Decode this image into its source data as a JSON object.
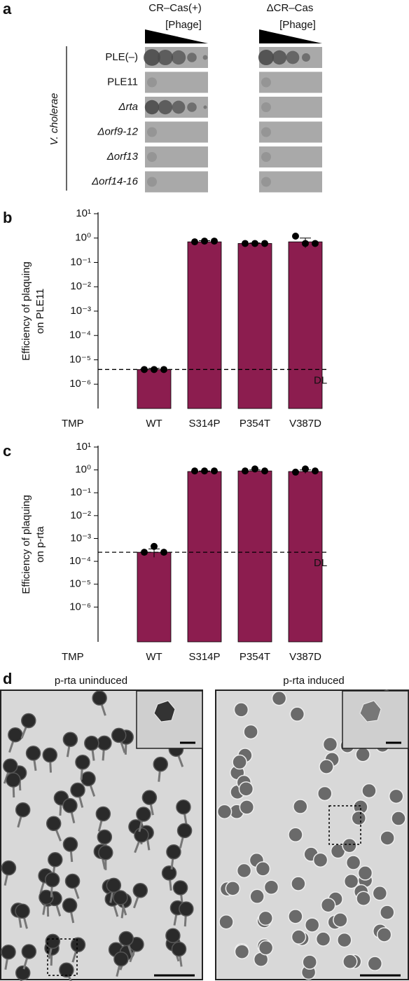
{
  "panel_a": {
    "label": "a",
    "columns": [
      {
        "title": "CR–Cas(+)",
        "subtitle": "[Phage]"
      },
      {
        "title": "ΔCR–Cas",
        "subtitle": "[Phage]"
      }
    ],
    "group_label": "V. cholerae",
    "rows": [
      "PLE(–)",
      "PLE11",
      "Δrta",
      "Δorf9-12",
      "Δorf13",
      "Δorf14-16"
    ]
  },
  "chart_data": [
    {
      "type": "bar",
      "panel_label": "b",
      "y_label": [
        "Efficiency of plaquing",
        "on PLE11"
      ],
      "x_label": "TMP",
      "categories": [
        "WT",
        "S314P",
        "P354T",
        "V387D"
      ],
      "values": [
        4e-06,
        0.7,
        0.6,
        0.7
      ],
      "errors": [
        5e-07,
        0.08,
        0.03,
        0.3
      ],
      "points": [
        [
          4e-06,
          4e-06,
          4e-06
        ],
        [
          0.7,
          0.75,
          0.75
        ],
        [
          0.6,
          0.6,
          0.6
        ],
        [
          1.2,
          0.6,
          0.6
        ]
      ],
      "color": "#8c1d4f",
      "log_scale": true,
      "ylim": [
        1e-07,
        10
      ],
      "yticks": [
        {
          "value": 10,
          "label": "10¹"
        },
        {
          "value": 1,
          "label": "10⁰"
        },
        {
          "value": 0.1,
          "label": "10⁻¹"
        },
        {
          "value": 0.01,
          "label": "10⁻²"
        },
        {
          "value": 0.001,
          "label": "10⁻³"
        },
        {
          "value": 0.0001,
          "label": "10⁻⁴"
        },
        {
          "value": 1e-05,
          "label": "10⁻⁵"
        },
        {
          "value": 1e-06,
          "label": "10⁻⁶"
        }
      ],
      "detection_limit": 4e-06,
      "detection_limit_label": "DL"
    },
    {
      "type": "bar",
      "panel_label": "c",
      "y_label": [
        "Efficiency of plaquing",
        "on p-rta"
      ],
      "x_label": "TMP",
      "categories": [
        "WT",
        "S314P",
        "P354T",
        "V387D"
      ],
      "values": [
        0.00025,
        0.85,
        0.9,
        0.85
      ],
      "errors": [
        0.0001,
        0.05,
        0.1,
        0.15
      ],
      "points": [
        [
          0.00025,
          0.00045,
          0.00025
        ],
        [
          0.9,
          0.9,
          0.9
        ],
        [
          0.9,
          1.1,
          0.9
        ],
        [
          0.8,
          1.1,
          0.9
        ]
      ],
      "color": "#8c1d4f",
      "log_scale": true,
      "ylim": [
        3e-08,
        10
      ],
      "yticks": [
        {
          "value": 10,
          "label": "10¹"
        },
        {
          "value": 1,
          "label": "10⁰"
        },
        {
          "value": 0.1,
          "label": "10⁻¹"
        },
        {
          "value": 0.01,
          "label": "10⁻²"
        },
        {
          "value": 0.001,
          "label": "10⁻³"
        },
        {
          "value": 0.0001,
          "label": "10⁻⁴"
        },
        {
          "value": 1e-05,
          "label": "10⁻⁵"
        },
        {
          "value": 1e-06,
          "label": "10⁻⁶"
        }
      ],
      "detection_limit": 0.00025,
      "detection_limit_label": "DL"
    }
  ],
  "panel_d": {
    "label": "d",
    "images": [
      {
        "title": "p-rta uninduced"
      },
      {
        "title": "p-rta induced"
      }
    ]
  }
}
